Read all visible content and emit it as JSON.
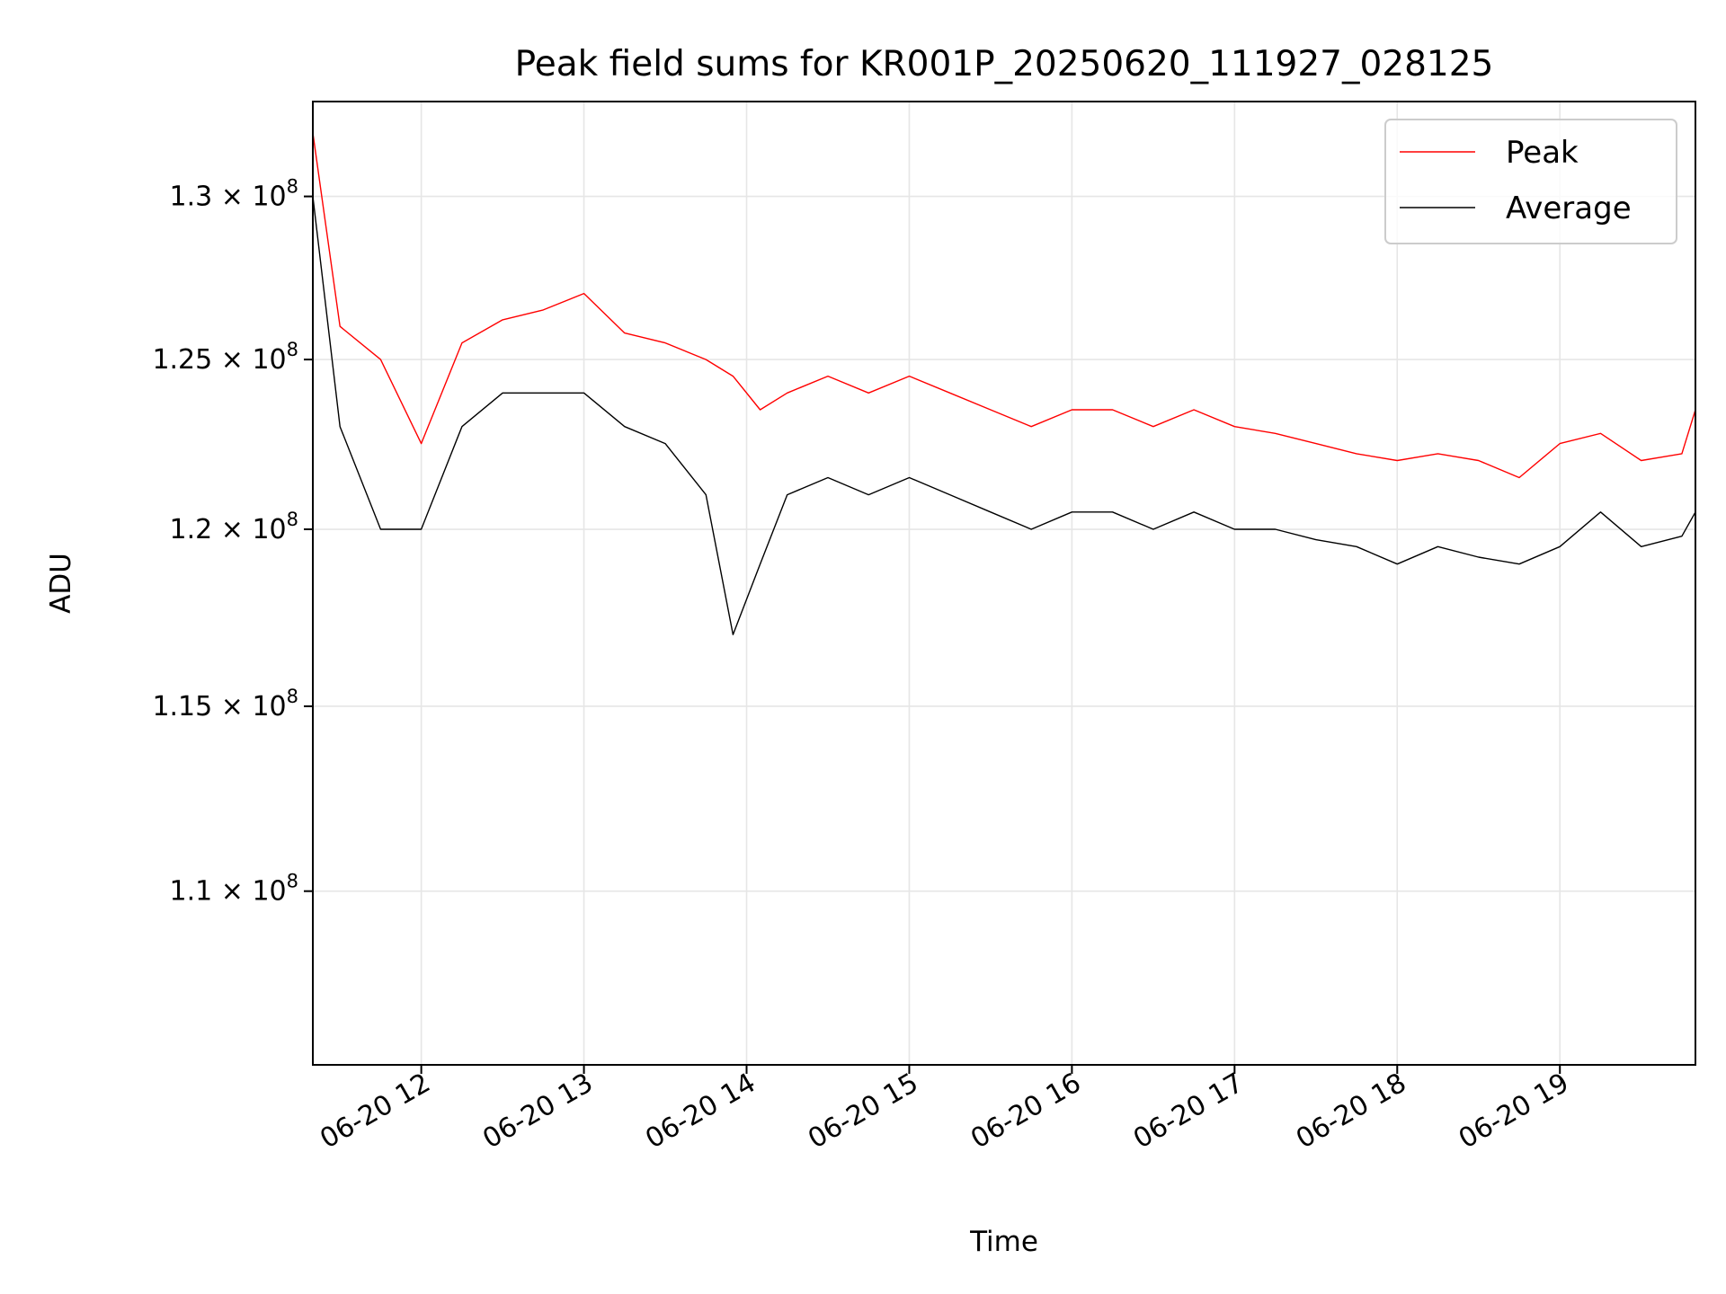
{
  "chart_data": {
    "type": "line",
    "title": "Peak field sums for KR001P_20250620_111927_028125",
    "xlabel": "Time",
    "ylabel": "ADU",
    "x_range": [
      "2025-06-20 11:20",
      "2025-06-20 19:50"
    ],
    "ylim": [
      105500000.0,
      133000000.0
    ],
    "y_scale": "log",
    "grid": true,
    "legend_placement": "upper right",
    "x_ticks": [
      {
        "value": "2025-06-20 12:00",
        "label": "06-20 12"
      },
      {
        "value": "2025-06-20 13:00",
        "label": "06-20 13"
      },
      {
        "value": "2025-06-20 14:00",
        "label": "06-20 14"
      },
      {
        "value": "2025-06-20 15:00",
        "label": "06-20 15"
      },
      {
        "value": "2025-06-20 16:00",
        "label": "06-20 16"
      },
      {
        "value": "2025-06-20 17:00",
        "label": "06-20 17"
      },
      {
        "value": "2025-06-20 18:00",
        "label": "06-20 18"
      },
      {
        "value": "2025-06-20 19:00",
        "label": "06-20 19"
      }
    ],
    "y_ticks": [
      {
        "value": 110000000.0,
        "mantissa": "1.1",
        "exp": "8"
      },
      {
        "value": 115000000.0,
        "mantissa": "1.15",
        "exp": "8"
      },
      {
        "value": 120000000.0,
        "mantissa": "1.2",
        "exp": "8"
      },
      {
        "value": 125000000.0,
        "mantissa": "1.25",
        "exp": "8"
      },
      {
        "value": 130000000.0,
        "mantissa": "1.3",
        "exp": "8"
      }
    ],
    "y_tick_mult": "×",
    "y_tick_base": "10",
    "series": [
      {
        "name": "Peak",
        "color": "#ff0000",
        "x": [
          "2025-06-20 11:20",
          "2025-06-20 11:30",
          "2025-06-20 11:45",
          "2025-06-20 12:00",
          "2025-06-20 12:15",
          "2025-06-20 12:30",
          "2025-06-20 12:45",
          "2025-06-20 13:00",
          "2025-06-20 13:15",
          "2025-06-20 13:30",
          "2025-06-20 13:45",
          "2025-06-20 13:55",
          "2025-06-20 14:05",
          "2025-06-20 14:15",
          "2025-06-20 14:30",
          "2025-06-20 14:45",
          "2025-06-20 15:00",
          "2025-06-20 15:15",
          "2025-06-20 15:30",
          "2025-06-20 15:45",
          "2025-06-20 16:00",
          "2025-06-20 16:15",
          "2025-06-20 16:30",
          "2025-06-20 16:45",
          "2025-06-20 17:00",
          "2025-06-20 17:15",
          "2025-06-20 17:30",
          "2025-06-20 17:45",
          "2025-06-20 18:00",
          "2025-06-20 18:15",
          "2025-06-20 18:30",
          "2025-06-20 18:45",
          "2025-06-20 19:00",
          "2025-06-20 19:15",
          "2025-06-20 19:30",
          "2025-06-20 19:45",
          "2025-06-20 19:50"
        ],
        "values": [
          132000000.0,
          126000000.0,
          125000000.0,
          122500000.0,
          125500000.0,
          126200000.0,
          126500000.0,
          127000000.0,
          125800000.0,
          125500000.0,
          125000000.0,
          124500000.0,
          123500000.0,
          124000000.0,
          124500000.0,
          124000000.0,
          124500000.0,
          124000000.0,
          123500000.0,
          123000000.0,
          123500000.0,
          123500000.0,
          123000000.0,
          123500000.0,
          123000000.0,
          122800000.0,
          122500000.0,
          122200000.0,
          122000000.0,
          122200000.0,
          122000000.0,
          121500000.0,
          122500000.0,
          122800000.0,
          122000000.0,
          122200000.0,
          123500000.0
        ]
      },
      {
        "name": "Average",
        "color": "#000000",
        "x": [
          "2025-06-20 11:20",
          "2025-06-20 11:30",
          "2025-06-20 11:45",
          "2025-06-20 12:00",
          "2025-06-20 12:15",
          "2025-06-20 12:30",
          "2025-06-20 12:45",
          "2025-06-20 13:00",
          "2025-06-20 13:15",
          "2025-06-20 13:30",
          "2025-06-20 13:45",
          "2025-06-20 13:55",
          "2025-06-20 14:05",
          "2025-06-20 14:15",
          "2025-06-20 14:30",
          "2025-06-20 14:45",
          "2025-06-20 15:00",
          "2025-06-20 15:15",
          "2025-06-20 15:30",
          "2025-06-20 15:45",
          "2025-06-20 16:00",
          "2025-06-20 16:15",
          "2025-06-20 16:30",
          "2025-06-20 16:45",
          "2025-06-20 17:00",
          "2025-06-20 17:15",
          "2025-06-20 17:30",
          "2025-06-20 17:45",
          "2025-06-20 18:00",
          "2025-06-20 18:15",
          "2025-06-20 18:30",
          "2025-06-20 18:45",
          "2025-06-20 19:00",
          "2025-06-20 19:15",
          "2025-06-20 19:30",
          "2025-06-20 19:45",
          "2025-06-20 19:50"
        ],
        "values": [
          130000000.0,
          123000000.0,
          120000000.0,
          120000000.0,
          123000000.0,
          124000000.0,
          124000000.0,
          124000000.0,
          123000000.0,
          122500000.0,
          121000000.0,
          117000000.0,
          119000000.0,
          121000000.0,
          121500000.0,
          121000000.0,
          121500000.0,
          121000000.0,
          120500000.0,
          120000000.0,
          120500000.0,
          120500000.0,
          120000000.0,
          120500000.0,
          120000000.0,
          120000000.0,
          119700000.0,
          119500000.0,
          119000000.0,
          119500000.0,
          119200000.0,
          119000000.0,
          119500000.0,
          120500000.0,
          119500000.0,
          119800000.0,
          120500000.0
        ]
      }
    ]
  }
}
